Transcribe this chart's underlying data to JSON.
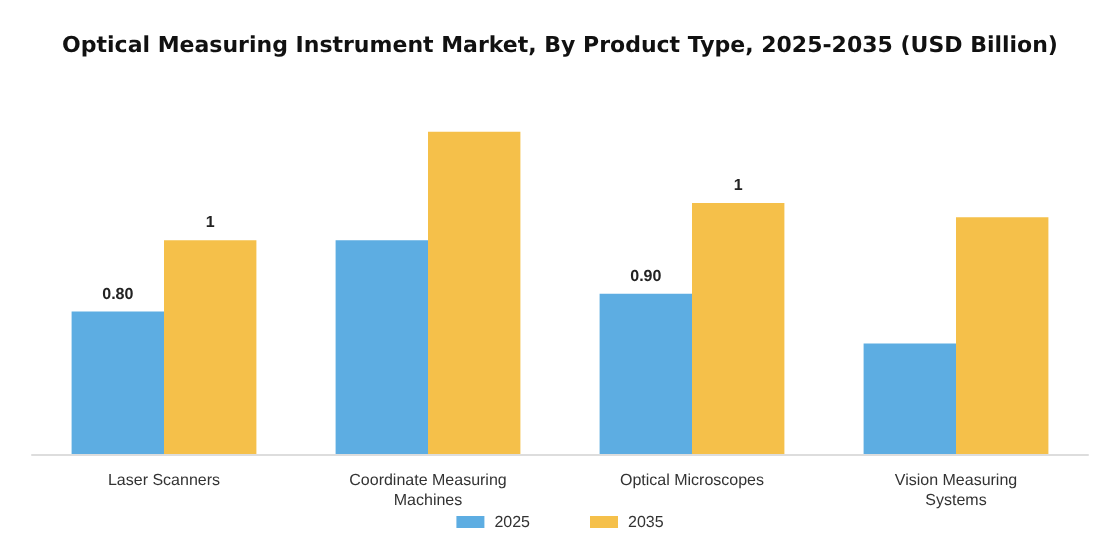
{
  "chart_data": {
    "type": "bar",
    "title": "Optical Measuring Instrument Market, By Product Type, 2025-2035 (USD Billion)",
    "categories": [
      "Laser Scanners",
      "Coordinate Measuring\nMachines",
      "Optical Microscopes",
      "Vision Measuring\nSystems"
    ],
    "series": [
      {
        "name": "2025",
        "color": "#5dade2",
        "values": [
          0.8,
          1.2,
          0.9,
          0.62
        ],
        "value_labels": [
          "0.80",
          null,
          "0.90",
          null
        ]
      },
      {
        "name": "2035",
        "color": "#f5c04a",
        "values": [
          1.2,
          1.81,
          1.41,
          1.33
        ],
        "value_labels": [
          "1",
          null,
          "1",
          null
        ]
      }
    ],
    "legend": "bottom",
    "grid": false
  }
}
